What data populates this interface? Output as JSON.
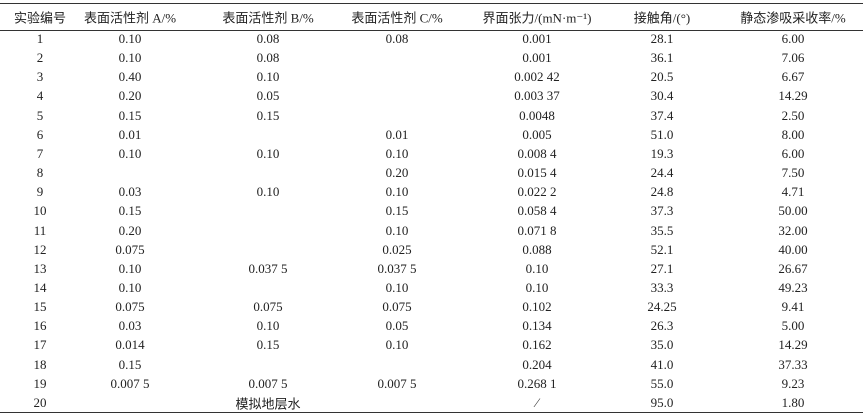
{
  "table": {
    "header": [
      "实验编号",
      "表面活性剂 A/%",
      "表面活性剂 B/%",
      "表面活性剂 C/%",
      "界面张力/(mN·m⁻¹)",
      "接触角/(°)",
      "静态渗吸采收率/%"
    ],
    "rows": [
      [
        "1",
        "0.10",
        "0.08",
        "0.08",
        "0.001",
        "28.1",
        "6.00"
      ],
      [
        "2",
        "0.10",
        "0.08",
        null,
        "0.001",
        "36.1",
        "7.06"
      ],
      [
        "3",
        "0.40",
        "0.10",
        null,
        "0.002 42",
        "20.5",
        "6.67"
      ],
      [
        "4",
        "0.20",
        "0.05",
        null,
        "0.003 37",
        "30.4",
        "14.29"
      ],
      [
        "5",
        "0.15",
        "0.15",
        null,
        "0.0048",
        "37.4",
        "2.50"
      ],
      [
        "6",
        "0.01",
        null,
        "0.01",
        "0.005",
        "51.0",
        "8.00"
      ],
      [
        "7",
        "0.10",
        "0.10",
        "0.10",
        "0.008 4",
        "19.3",
        "6.00"
      ],
      [
        "8",
        null,
        null,
        "0.20",
        "0.015 4",
        "24.4",
        "7.50"
      ],
      [
        "9",
        "0.03",
        "0.10",
        "0.10",
        "0.022 2",
        "24.8",
        "4.71"
      ],
      [
        "10",
        "0.15",
        null,
        "0.15",
        "0.058 4",
        "37.3",
        "50.00"
      ],
      [
        "11",
        "0.20",
        null,
        "0.10",
        "0.071 8",
        "35.5",
        "32.00"
      ],
      [
        "12",
        "0.075",
        null,
        "0.025",
        "0.088",
        "52.1",
        "40.00"
      ],
      [
        "13",
        "0.10",
        "0.037 5",
        "0.037 5",
        "0.10",
        "27.1",
        "26.67"
      ],
      [
        "14",
        "0.10",
        null,
        "0.10",
        "0.10",
        "33.3",
        "49.23"
      ],
      [
        "15",
        "0.075",
        "0.075",
        "0.075",
        "0.102",
        "24.25",
        "9.41"
      ],
      [
        "16",
        "0.03",
        "0.10",
        "0.05",
        "0.134",
        "26.3",
        "5.00"
      ],
      [
        "17",
        "0.014",
        "0.15",
        "0.10",
        "0.162",
        "35.0",
        "14.29"
      ],
      [
        "18",
        "0.15",
        null,
        null,
        "0.204",
        "41.0",
        "37.33"
      ],
      [
        "19",
        "0.007 5",
        "0.007 5",
        "0.007 5",
        "0.268 1",
        "55.0",
        "9.23"
      ],
      [
        "20",
        null,
        "模拟地层水",
        null,
        "⁄",
        "95.0",
        "1.80"
      ]
    ]
  }
}
